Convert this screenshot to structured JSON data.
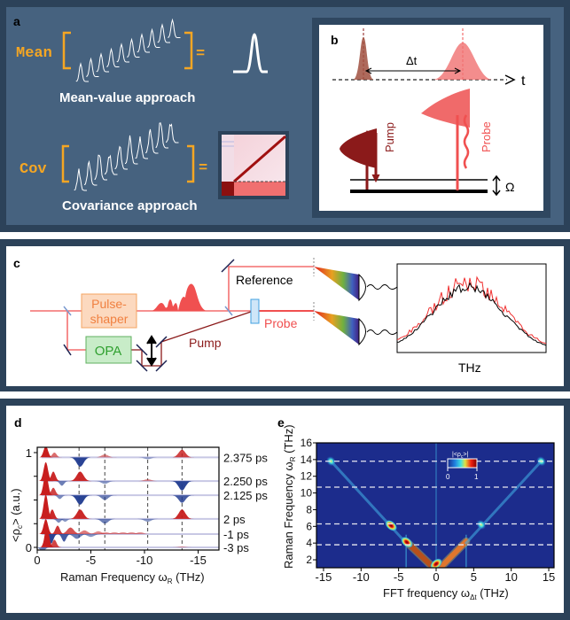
{
  "panel_labels": {
    "a": "a",
    "b": "b",
    "c": "c",
    "d": "d",
    "e": "e"
  },
  "panel_a": {
    "mean_label": "Mean",
    "cov_label": "Cov",
    "equals": "=",
    "mean_caption": "Mean-value approach",
    "cov_caption": "Covariance approach",
    "accent_color": "#f5a623"
  },
  "panel_b": {
    "delta_t": "Δt",
    "time_axis": "t",
    "pump": "Pump",
    "probe": "Probe",
    "omega": "Ω",
    "pump_color": "#8b1a1a",
    "probe_color": "#f05050"
  },
  "panel_c": {
    "pulse_shaper": "Pulse-\nshaper",
    "pulse_shaper_line1": "Pulse-",
    "pulse_shaper_line2": "shaper",
    "opa": "OPA",
    "reference": "Reference",
    "probe": "Probe",
    "pump": "Pump",
    "spectrum_axis": "THz"
  },
  "chart_data": [
    {
      "id": "d",
      "type": "line",
      "xlabel": "Raman Frequency ω",
      "xlabel_sub": "R",
      "xlabel_unit": "(THz)",
      "ylabel": "<ρ",
      "ylabel_sub": "c",
      "ylabel_rest": "> (a.u.)",
      "xlim": [
        0,
        -17
      ],
      "ylim": [
        0,
        1
      ],
      "xticks": [
        "0",
        "-5",
        "-10",
        "-15"
      ],
      "xtick_values": [
        0,
        -5,
        -10,
        -15
      ],
      "yticks": [
        "0",
        "1"
      ],
      "ytick_values": [
        0,
        1
      ],
      "dashed_lines_x": [
        -3.9,
        -6.3,
        -10.3,
        -13.5
      ],
      "series": [
        {
          "name": "2.375 ps",
          "baseline": 0.95,
          "peaks": [
            [
              -0.8,
              0.12
            ],
            [
              -1.6,
              0.05
            ],
            [
              -4.0,
              -0.1
            ],
            [
              -6.3,
              0.03
            ],
            [
              -10.3,
              -0.02
            ],
            [
              -13.5,
              0.08
            ]
          ]
        },
        {
          "name": "2.250 ps",
          "baseline": 0.7,
          "peaks": [
            [
              -0.8,
              0.2
            ],
            [
              -1.5,
              0.1
            ],
            [
              -2.3,
              -0.05
            ],
            [
              -4.0,
              0.1
            ],
            [
              -6.3,
              -0.03
            ],
            [
              -10.3,
              0.02
            ],
            [
              -13.5,
              -0.1
            ]
          ]
        },
        {
          "name": "2.125 ps",
          "baseline": 0.55,
          "peaks": [
            [
              -0.8,
              0.24
            ],
            [
              -1.5,
              0.08
            ],
            [
              -2.1,
              -0.04
            ],
            [
              -4.0,
              -0.1
            ],
            [
              -6.3,
              -0.05
            ],
            [
              -13.5,
              -0.08
            ]
          ]
        },
        {
          "name": "2 ps",
          "baseline": 0.3,
          "peaks": [
            [
              -0.8,
              0.26
            ],
            [
              -1.4,
              0.1
            ],
            [
              -2.0,
              -0.04
            ],
            [
              -2.6,
              -0.03
            ],
            [
              -4.0,
              0.1
            ],
            [
              -6.3,
              -0.05
            ],
            [
              -10.3,
              -0.03
            ],
            [
              -13.5,
              0.1
            ]
          ]
        },
        {
          "name": "-1 ps",
          "baseline": 0.14,
          "peaks": [
            [
              -0.8,
              0.16
            ],
            [
              -1.3,
              -0.1
            ],
            [
              -1.9,
              0.09
            ],
            [
              -2.5,
              -0.08
            ],
            [
              -3.1,
              0.07
            ],
            [
              -3.7,
              -0.05
            ],
            [
              -4.4,
              0.04
            ],
            [
              -5.0,
              -0.03
            ],
            [
              -5.7,
              0.03
            ],
            [
              -6.4,
              0.02
            ],
            [
              -7.2,
              0.02
            ],
            [
              -8.0,
              0.02
            ],
            [
              -8.8,
              0.02
            ],
            [
              -9.6,
              0.02
            ]
          ]
        },
        {
          "name": "-3 ps",
          "baseline": 0.0,
          "peaks": [
            [
              -0.5,
              -0.05
            ],
            [
              -0.9,
              0.22
            ],
            [
              -1.6,
              0.08
            ],
            [
              -13.5,
              0.01
            ]
          ]
        }
      ],
      "positive_color": "#c81e1e",
      "negative_color": "#1f3a8f"
    },
    {
      "id": "e",
      "type": "heatmap",
      "xlabel": "FFT frequency ω",
      "xlabel_sub": "Δt",
      "xlabel_unit": "(THz)",
      "ylabel": "Raman Frequency ω",
      "ylabel_sub": "R",
      "ylabel_unit": "(THz)",
      "xlim": [
        -16,
        16
      ],
      "ylim": [
        1,
        16
      ],
      "xticks": [
        "-15",
        "-10",
        "-5",
        "0",
        "5",
        "10",
        "15"
      ],
      "xtick_values": [
        -15,
        -10,
        -5,
        0,
        5,
        10,
        15
      ],
      "yticks": [
        "2",
        "4",
        "6",
        "8",
        "10",
        "12",
        "14",
        "16"
      ],
      "ytick_values": [
        2,
        4,
        6,
        8,
        10,
        12,
        14,
        16
      ],
      "dashed_lines_y": [
        3.8,
        6.3,
        10.7,
        13.8
      ],
      "colorbar": {
        "label": "|<ρ",
        "label_sub": "c",
        "label_end": ">|",
        "min": "0",
        "max": "1"
      },
      "background_value": 0.05,
      "streaks": [
        {
          "from": [
            -0.3,
            1
          ],
          "to": [
            -4,
            4.2
          ],
          "value": 1.0
        },
        {
          "from": [
            0.5,
            1
          ],
          "to": [
            4,
            4.2
          ],
          "value": 0.75
        },
        {
          "from": [
            -4,
            4
          ],
          "to": [
            -14,
            13.8
          ],
          "value": 0.25
        },
        {
          "from": [
            4,
            4
          ],
          "to": [
            14,
            13.8
          ],
          "value": 0.2
        }
      ],
      "spots": [
        {
          "x": -6.0,
          "y": 6.1,
          "value": 1.0
        },
        {
          "x": 6.0,
          "y": 6.2,
          "value": 0.45
        },
        {
          "x": -14.0,
          "y": 13.8,
          "value": 0.7
        },
        {
          "x": 14.0,
          "y": 13.8,
          "value": 0.45
        },
        {
          "x": -3.9,
          "y": 4.1,
          "value": 0.9
        },
        {
          "x": 0.0,
          "y": 1.5,
          "value": 0.85
        }
      ],
      "vertical_lines_x": [
        -4,
        0,
        4
      ]
    }
  ]
}
